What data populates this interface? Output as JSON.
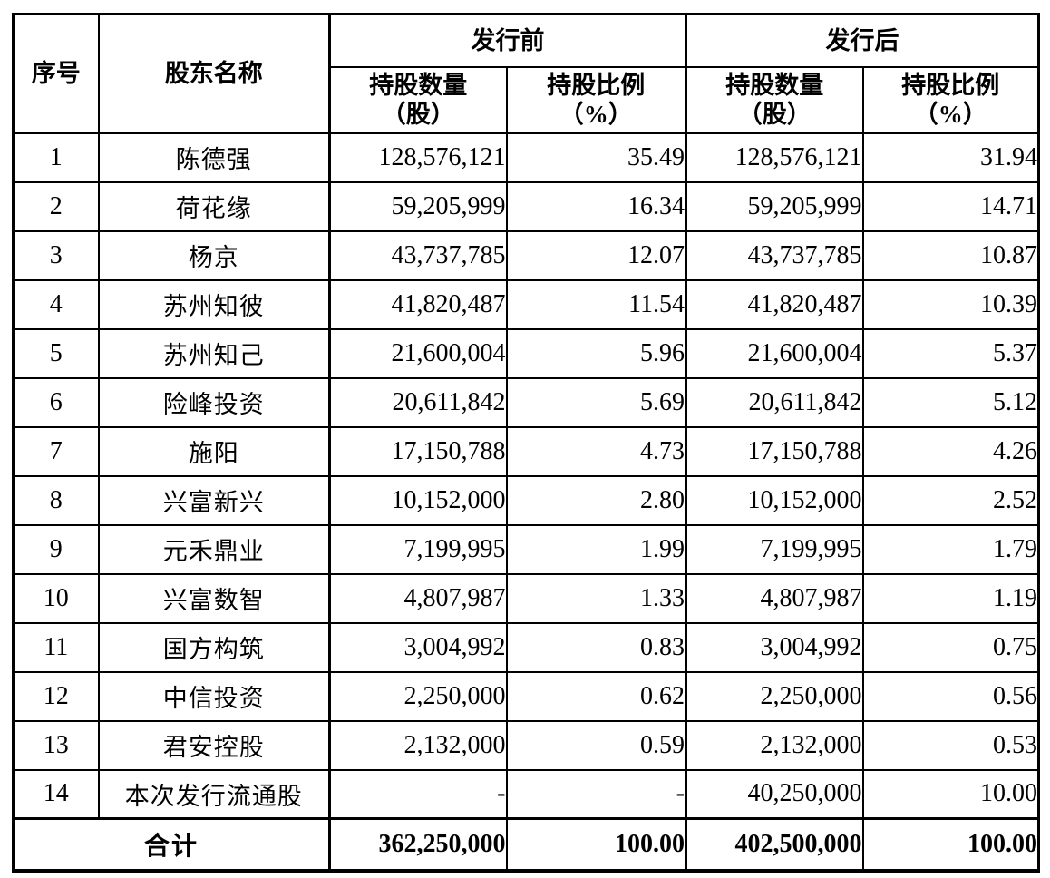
{
  "table": {
    "header": {
      "col_index": "序号",
      "col_name": "股东名称",
      "group_pre": "发行前",
      "group_post": "发行后",
      "sub_qty_line1": "持股数量",
      "sub_qty_line2": "（股）",
      "sub_pct_line1": "持股比例",
      "sub_pct_line2": "（%）"
    },
    "rows": [
      {
        "no": "1",
        "name": "陈德强",
        "pre_qty": "128,576,121",
        "pre_pct": "35.49",
        "post_qty": "128,576,121",
        "post_pct": "31.94"
      },
      {
        "no": "2",
        "name": "荷花缘",
        "pre_qty": "59,205,999",
        "pre_pct": "16.34",
        "post_qty": "59,205,999",
        "post_pct": "14.71"
      },
      {
        "no": "3",
        "name": "杨京",
        "pre_qty": "43,737,785",
        "pre_pct": "12.07",
        "post_qty": "43,737,785",
        "post_pct": "10.87"
      },
      {
        "no": "4",
        "name": "苏州知彼",
        "pre_qty": "41,820,487",
        "pre_pct": "11.54",
        "post_qty": "41,820,487",
        "post_pct": "10.39"
      },
      {
        "no": "5",
        "name": "苏州知己",
        "pre_qty": "21,600,004",
        "pre_pct": "5.96",
        "post_qty": "21,600,004",
        "post_pct": "5.37"
      },
      {
        "no": "6",
        "name": "险峰投资",
        "pre_qty": "20,611,842",
        "pre_pct": "5.69",
        "post_qty": "20,611,842",
        "post_pct": "5.12"
      },
      {
        "no": "7",
        "name": "施阳",
        "pre_qty": "17,150,788",
        "pre_pct": "4.73",
        "post_qty": "17,150,788",
        "post_pct": "4.26"
      },
      {
        "no": "8",
        "name": "兴富新兴",
        "pre_qty": "10,152,000",
        "pre_pct": "2.80",
        "post_qty": "10,152,000",
        "post_pct": "2.52"
      },
      {
        "no": "9",
        "name": "元禾鼎业",
        "pre_qty": "7,199,995",
        "pre_pct": "1.99",
        "post_qty": "7,199,995",
        "post_pct": "1.79"
      },
      {
        "no": "10",
        "name": "兴富数智",
        "pre_qty": "4,807,987",
        "pre_pct": "1.33",
        "post_qty": "4,807,987",
        "post_pct": "1.19"
      },
      {
        "no": "11",
        "name": "国方构筑",
        "pre_qty": "3,004,992",
        "pre_pct": "0.83",
        "post_qty": "3,004,992",
        "post_pct": "0.75"
      },
      {
        "no": "12",
        "name": "中信投资",
        "pre_qty": "2,250,000",
        "pre_pct": "0.62",
        "post_qty": "2,250,000",
        "post_pct": "0.56"
      },
      {
        "no": "13",
        "name": "君安控股",
        "pre_qty": "2,132,000",
        "pre_pct": "0.59",
        "post_qty": "2,132,000",
        "post_pct": "0.53"
      },
      {
        "no": "14",
        "name": "本次发行流通股",
        "pre_qty": "-",
        "pre_pct": "-",
        "post_qty": "40,250,000",
        "post_pct": "10.00"
      }
    ],
    "total": {
      "label": "合计",
      "pre_qty": "362,250,000",
      "pre_pct": "100.00",
      "post_qty": "402,500,000",
      "post_pct": "100.00"
    }
  }
}
